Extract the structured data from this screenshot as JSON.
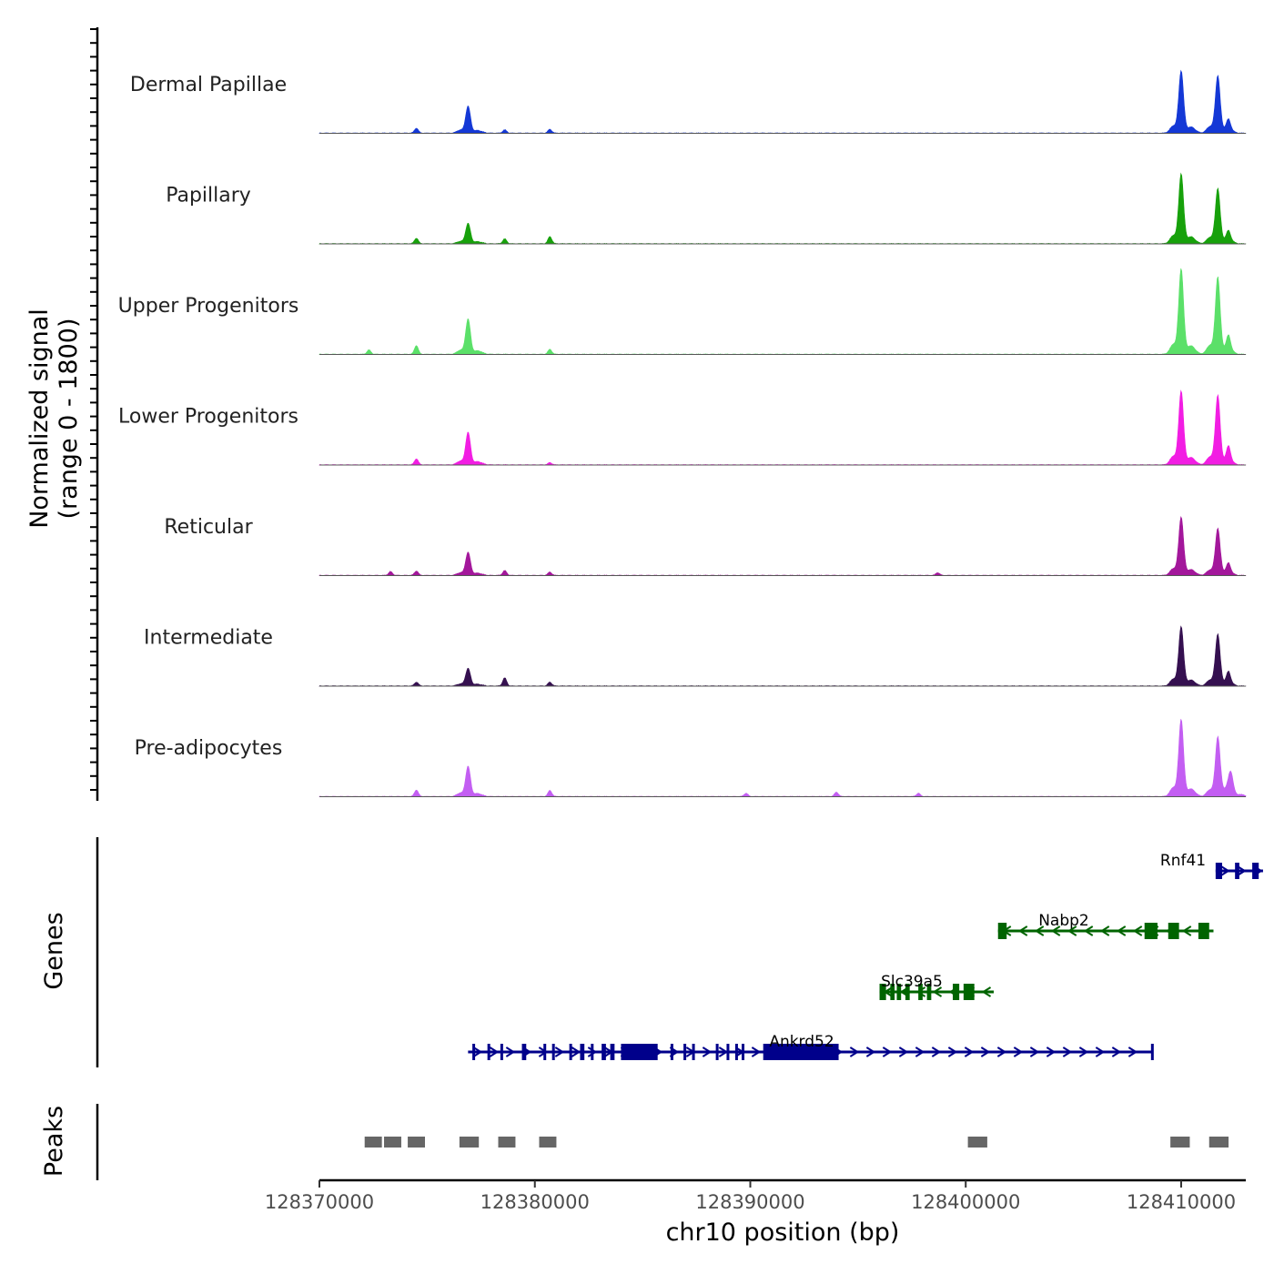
{
  "chart_data": {
    "type": "area",
    "title": "",
    "chromosome": "chr10",
    "xlabel": "chr10 position (bp)",
    "ylabel_line1": "Normalized signal",
    "ylabel_line2": "(range 0 - 1800)",
    "xlim": [
      128370000,
      128413000
    ],
    "ylim": [
      0,
      1800
    ],
    "x_ticks": [
      128370000,
      128380000,
      128390000,
      128400000,
      128410000
    ],
    "x_tick_labels": [
      "128370000",
      "128380000",
      "128390000",
      "128400000",
      "128410000"
    ],
    "peak_shape": [
      {
        "offset": 128376900,
        "width": 120,
        "scale": 1.0
      },
      {
        "offset": 128376650,
        "width": 150,
        "scale": 0.32
      },
      {
        "offset": 128377150,
        "width": 150,
        "scale": 0.25
      },
      {
        "offset": 128377400,
        "width": 120,
        "scale": 0.18
      },
      {
        "offset": 128377700,
        "width": 120,
        "scale": 0.12
      },
      {
        "offset": 128376400,
        "width": 160,
        "scale": 0.1
      }
    ],
    "series": [
      {
        "name": "Dermal Papillae",
        "color": "#1438d6",
        "peaks": [
          {
            "x": 128374500,
            "h": 90
          },
          {
            "x": 128376900,
            "h": 490
          },
          {
            "x": 128378600,
            "h": 60
          },
          {
            "x": 128380700,
            "h": 70
          },
          {
            "x": 128410000,
            "h": 1130
          },
          {
            "x": 128411700,
            "h": 1040
          },
          {
            "x": 128412200,
            "h": 160
          }
        ]
      },
      {
        "name": "Papillary",
        "color": "#17a10b",
        "peaks": [
          {
            "x": 128374500,
            "h": 100
          },
          {
            "x": 128376900,
            "h": 370
          },
          {
            "x": 128378600,
            "h": 90
          },
          {
            "x": 128380700,
            "h": 130
          },
          {
            "x": 128410000,
            "h": 1270
          },
          {
            "x": 128411700,
            "h": 1000
          },
          {
            "x": 128412200,
            "h": 150
          }
        ]
      },
      {
        "name": "Upper Progenitors",
        "color": "#5be069",
        "peaks": [
          {
            "x": 128372300,
            "h": 80
          },
          {
            "x": 128374500,
            "h": 160
          },
          {
            "x": 128376900,
            "h": 640
          },
          {
            "x": 128380700,
            "h": 90
          },
          {
            "x": 128410000,
            "h": 1550
          },
          {
            "x": 128411700,
            "h": 1400
          },
          {
            "x": 128412200,
            "h": 220
          }
        ]
      },
      {
        "name": "Lower Progenitors",
        "color": "#f21de3",
        "peaks": [
          {
            "x": 128374500,
            "h": 110
          },
          {
            "x": 128376900,
            "h": 590
          },
          {
            "x": 128380700,
            "h": 40
          },
          {
            "x": 128410000,
            "h": 1340
          },
          {
            "x": 128411700,
            "h": 1260
          },
          {
            "x": 128412200,
            "h": 230
          }
        ]
      },
      {
        "name": "Reticular",
        "color": "#a3179b",
        "peaks": [
          {
            "x": 128373300,
            "h": 70
          },
          {
            "x": 128374500,
            "h": 80
          },
          {
            "x": 128376900,
            "h": 420
          },
          {
            "x": 128378600,
            "h": 90
          },
          {
            "x": 128380700,
            "h": 60
          },
          {
            "x": 128398700,
            "h": 50
          },
          {
            "x": 128410000,
            "h": 1060
          },
          {
            "x": 128411700,
            "h": 850
          },
          {
            "x": 128412200,
            "h": 150
          }
        ]
      },
      {
        "name": "Intermediate",
        "color": "#351050",
        "peaks": [
          {
            "x": 128374500,
            "h": 70
          },
          {
            "x": 128376900,
            "h": 320
          },
          {
            "x": 128378600,
            "h": 150
          },
          {
            "x": 128380700,
            "h": 70
          },
          {
            "x": 128410000,
            "h": 1080
          },
          {
            "x": 128411700,
            "h": 940
          },
          {
            "x": 128412200,
            "h": 180
          }
        ]
      },
      {
        "name": "Pre-adipocytes",
        "color": "#c35ef2",
        "peaks": [
          {
            "x": 128374500,
            "h": 120
          },
          {
            "x": 128376900,
            "h": 550
          },
          {
            "x": 128380700,
            "h": 110
          },
          {
            "x": 128389800,
            "h": 60
          },
          {
            "x": 128394000,
            "h": 80
          },
          {
            "x": 128397800,
            "h": 60
          },
          {
            "x": 128410000,
            "h": 1400
          },
          {
            "x": 128411700,
            "h": 1070
          },
          {
            "x": 128412300,
            "h": 380
          }
        ]
      }
    ],
    "genes": {
      "label": "Genes",
      "items": [
        {
          "name": "Rnf41",
          "strand": "+",
          "color": "#00008b",
          "start": 128411600,
          "end": 128413800,
          "exons": [
            [
              128411600,
              128411900
            ],
            [
              128412500,
              128412700
            ],
            [
              128413300,
              128413600
            ]
          ]
        },
        {
          "name": "Nabp2",
          "strand": "-",
          "color": "#006400",
          "start": 128401500,
          "end": 128411500,
          "exons": [
            [
              128401500,
              128401900
            ],
            [
              128408300,
              128408900
            ],
            [
              128409400,
              128409900
            ],
            [
              128410800,
              128411300
            ]
          ]
        },
        {
          "name": "Slc39a5",
          "strand": "-",
          "color": "#006400",
          "start": 128396000,
          "end": 128401300,
          "exons": [
            [
              128396000,
              128396300
            ],
            [
              128396500,
              128396700
            ],
            [
              128396800,
              128397000
            ],
            [
              128397200,
              128397400
            ],
            [
              128397800,
              128398000
            ],
            [
              128398200,
              128398400
            ],
            [
              128399400,
              128399700
            ],
            [
              128399900,
              128400400
            ]
          ]
        },
        {
          "name": "Ankrd52",
          "strand": "+",
          "color": "#00008b",
          "start": 128376900,
          "end": 128408700,
          "exons": [
            [
              128377100,
              128377200
            ],
            [
              128377800,
              128377900
            ],
            [
              128378400,
              128378500
            ],
            [
              128379400,
              128379600
            ],
            [
              128380400,
              128380500
            ],
            [
              128380800,
              128380900
            ],
            [
              128381600,
              128381700
            ],
            [
              128382100,
              128382300
            ],
            [
              128382600,
              128382700
            ],
            [
              128383100,
              128383300
            ],
            [
              128383500,
              128383700
            ],
            [
              128384000,
              128385700
            ],
            [
              128386300,
              128386400
            ],
            [
              128386900,
              128387000
            ],
            [
              128387300,
              128387400
            ],
            [
              128388400,
              128388500
            ],
            [
              128388900,
              128389000
            ],
            [
              128389300,
              128389400
            ],
            [
              128389600,
              128389700
            ],
            [
              128390600,
              128394100
            ],
            [
              128408600,
              128408700
            ]
          ]
        }
      ]
    },
    "peaks_track": {
      "label": "Peaks",
      "color": "#666666",
      "regions": [
        [
          128372100,
          128372900
        ],
        [
          128373000,
          128373800
        ],
        [
          128374100,
          128374900
        ],
        [
          128376500,
          128377400
        ],
        [
          128378300,
          128379100
        ],
        [
          128380200,
          128381000
        ],
        [
          128400100,
          128401000
        ],
        [
          128409500,
          128410400
        ],
        [
          128411300,
          128412200
        ]
      ]
    }
  }
}
